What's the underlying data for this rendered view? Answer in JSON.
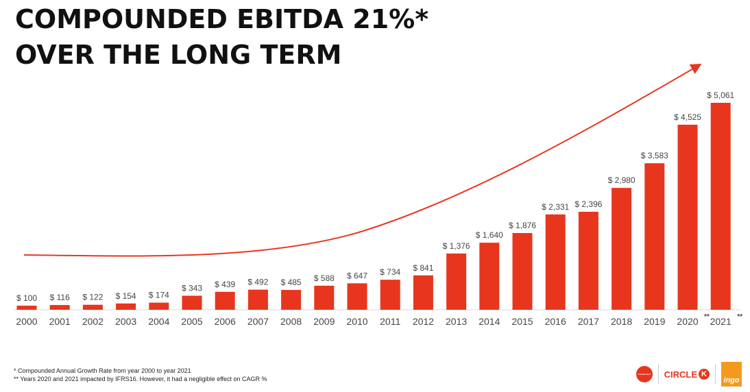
{
  "title": {
    "line1": "COMPOUNDED EBITDA 21%*",
    "line2": "OVER THE LONG TERM"
  },
  "colors": {
    "bar": "#e8361e",
    "arrow": "#e8361e",
    "text": "#333333"
  },
  "chart_data": {
    "type": "bar",
    "categories": [
      "2000",
      "2001",
      "2002",
      "2003",
      "2004",
      "2005",
      "2006",
      "2007",
      "2008",
      "2009",
      "2010",
      "2011",
      "2012",
      "2013",
      "2014",
      "2015",
      "2016",
      "2017",
      "2018",
      "2019",
      "2020",
      "2021"
    ],
    "values": [
      100,
      116,
      122,
      154,
      174,
      343,
      439,
      492,
      485,
      588,
      647,
      734,
      841,
      1376,
      1640,
      1876,
      2331,
      2396,
      2980,
      3583,
      4525,
      5061
    ],
    "data_labels": [
      "$ 100",
      "$ 116",
      "$ 122",
      "$ 154",
      "$ 174",
      "$ 343",
      "$ 439",
      "$ 492",
      "$ 485",
      "$ 588",
      "$ 647",
      "$ 734",
      "$ 841",
      "$ 1,376",
      "$ 1,640",
      "$ 1,876",
      "$ 2,331",
      "$ 2,396",
      "$ 2,980",
      "$ 3,583",
      "$ 4,525",
      "$ 5,061"
    ],
    "category_marks": {
      "2020": "**",
      "2021": "**"
    },
    "ylim": [
      0,
      5061
    ],
    "trend_arrow": "exponential trend arrow, upward",
    "grid": false,
    "legend": "none"
  },
  "footnotes": [
    "* Compounded Annual Growth Rate from year 2000 to year 2021",
    "** Years 2020 and 2021 impacted by IFRS16. However, it had a negligible effect on CAGR %"
  ],
  "logos": {
    "ck_text": "CIRCLE",
    "ck_mark": "K",
    "ingo_text": "ingo",
    "round_text": "Couche-Tard"
  }
}
